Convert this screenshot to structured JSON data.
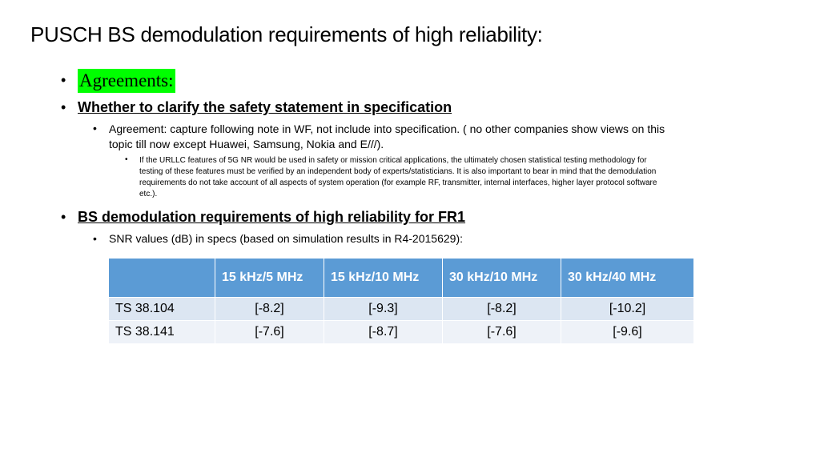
{
  "slide": {
    "title": "PUSCH BS demodulation requirements of high reliability:",
    "agreements_label": "Agreements:",
    "section1": {
      "heading": "Whether to clarify the safety statement in specification",
      "sub_line1": "Agreement: capture following note in WF, not include into specification. ( no other companies show views on this",
      "sub_line2": "topic till now except Huawei, Samsung, Nokia and E///).",
      "note_line1": "If the URLLC features of 5G NR would be used in safety or mission critical applications, the ultimately chosen statistical testing methodology for",
      "note_line2": "testing of these features must be verified by an independent body of experts/statisticians. It is also important to bear in mind that the demodulation",
      "note_line3": "requirements do not take account of all aspects of system operation (for example RF, transmitter, internal interfaces, higher layer protocol software",
      "note_line4": "etc.)."
    },
    "section2": {
      "heading": "BS demodulation requirements of high reliability for FR1",
      "sub": "SNR values (dB) in specs (based on simulation results in R4-2015629):"
    },
    "table": {
      "header": [
        "",
        "15 kHz/5 MHz",
        "15 kHz/10 MHz",
        "30 kHz/10 MHz",
        "30 kHz/40 MHz"
      ],
      "rows": [
        [
          "TS 38.104",
          "[-8.2]",
          "[-9.3]",
          "[-8.2]",
          "[-10.2]"
        ],
        [
          "TS 38.141",
          "[-7.6]",
          "[-8.7]",
          "[-7.6]",
          "[-9.6]"
        ]
      ]
    }
  }
}
